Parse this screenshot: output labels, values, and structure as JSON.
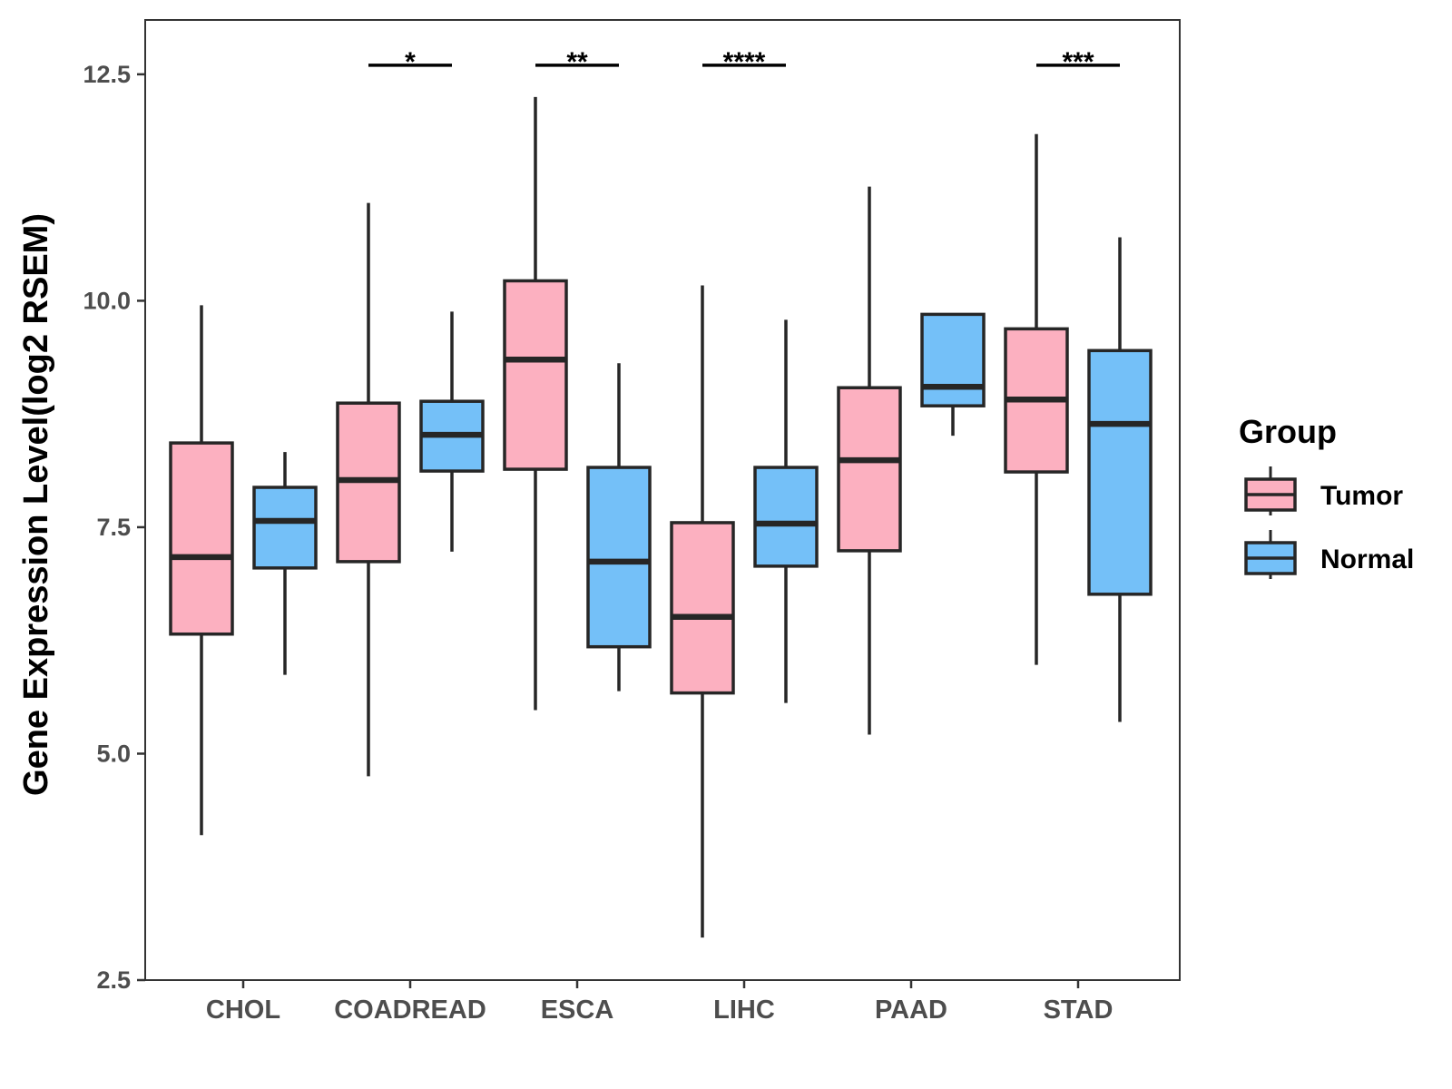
{
  "chart_data": {
    "type": "boxplot",
    "title": "",
    "xlabel": "",
    "ylabel": "Gene Expression Level(log2 RSEM)",
    "ylim": [
      2.5,
      13.1
    ],
    "yticks": [
      "2.5",
      "5.0",
      "7.5",
      "10.0",
      "12.5"
    ],
    "categories": [
      "CHOL",
      "COADREAD",
      "ESCA",
      "LIHC",
      "PAAD",
      "STAD"
    ],
    "legend": {
      "title": "Group",
      "position": "right",
      "entries": [
        "Tumor",
        "Normal"
      ]
    },
    "colors": {
      "Tumor": "#fcb0c0",
      "Normal": "#74c0f8",
      "stroke": "#262626"
    },
    "series": [
      {
        "name": "Tumor",
        "boxes": [
          {
            "min": 4.1,
            "q1": 6.32,
            "median": 7.17,
            "q3": 8.43,
            "max": 9.95
          },
          {
            "min": 4.75,
            "q1": 7.12,
            "median": 8.02,
            "q3": 8.87,
            "max": 11.08
          },
          {
            "min": 5.48,
            "q1": 8.14,
            "median": 9.35,
            "q3": 10.22,
            "max": 12.25
          },
          {
            "min": 2.97,
            "q1": 5.67,
            "median": 6.51,
            "q3": 7.55,
            "max": 10.17
          },
          {
            "min": 5.21,
            "q1": 7.24,
            "median": 8.24,
            "q3": 9.04,
            "max": 11.26
          },
          {
            "min": 5.98,
            "q1": 8.11,
            "median": 8.91,
            "q3": 9.69,
            "max": 11.84
          }
        ]
      },
      {
        "name": "Normal",
        "boxes": [
          {
            "min": 5.87,
            "q1": 7.05,
            "median": 7.57,
            "q3": 7.94,
            "max": 8.33
          },
          {
            "min": 7.23,
            "q1": 8.12,
            "median": 8.52,
            "q3": 8.89,
            "max": 9.88
          },
          {
            "min": 5.69,
            "q1": 6.18,
            "median": 7.12,
            "q3": 8.16,
            "max": 9.31
          },
          {
            "min": 5.56,
            "q1": 7.07,
            "median": 7.54,
            "q3": 8.16,
            "max": 9.79
          },
          {
            "min": 8.51,
            "q1": 8.84,
            "median": 9.05,
            "q3": 9.85,
            "max": 9.85
          },
          {
            "min": 5.35,
            "q1": 6.76,
            "median": 8.64,
            "q3": 9.45,
            "max": 10.7
          }
        ]
      }
    ],
    "significance": [
      {
        "category": "COADREAD",
        "label": "*"
      },
      {
        "category": "ESCA",
        "label": "**"
      },
      {
        "category": "LIHC",
        "label": "****"
      },
      {
        "category": "STAD",
        "label": "***"
      }
    ]
  }
}
